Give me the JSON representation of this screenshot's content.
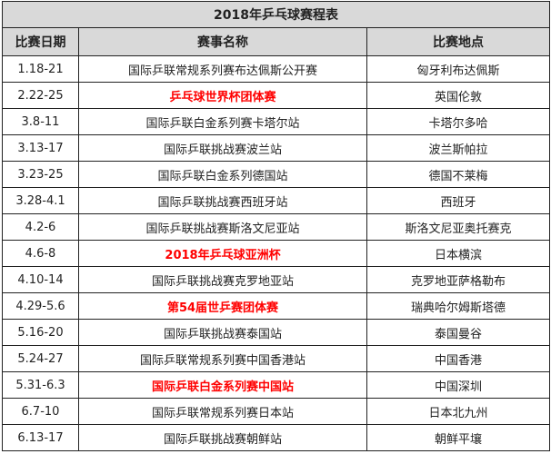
{
  "title": "2018年乒乓球赛程表",
  "headers": [
    "比赛日期",
    "赛事名称",
    "比赛地点"
  ],
  "highlight_color": "#ff0000",
  "rows": [
    {
      "date": "1.18-21",
      "event": "国际乒联常规系列赛布达佩斯公开赛",
      "location": "匈牙利布达佩斯",
      "highlight": false
    },
    {
      "date": "2.22-25",
      "event": "乒乓球世界杯团体赛",
      "location": "英国伦敦",
      "highlight": true
    },
    {
      "date": "3.8-11",
      "event": "国际乒联白金系列赛卡塔尔站",
      "location": "卡塔尔多哈",
      "highlight": false
    },
    {
      "date": "3.13-17",
      "event": "国际乒联挑战赛波兰站",
      "location": "波兰斯帕拉",
      "highlight": false
    },
    {
      "date": "3.23-25",
      "event": "国际乒联白金系列德国站",
      "location": "德国不莱梅",
      "highlight": false
    },
    {
      "date": "3.28-4.1",
      "event": "国际乒联挑战赛西班牙站",
      "location": "西班牙",
      "highlight": false
    },
    {
      "date": "4.2-6",
      "event": "国际乒联挑战赛斯洛文尼亚站",
      "location": "斯洛文尼亚奥托赛克",
      "highlight": false
    },
    {
      "date": "4.6-8",
      "event": "2018年乒乓球亚洲杯",
      "location": "日本横滨",
      "highlight": true
    },
    {
      "date": "4.10-14",
      "event": "国际乒联挑战赛克罗地亚站",
      "location": "克罗地亚萨格勒布",
      "highlight": false
    },
    {
      "date": "4.29-5.6",
      "event": "第54届世乒赛团体赛",
      "location": "瑞典哈尔姆斯塔德",
      "highlight": true
    },
    {
      "date": "5.16-20",
      "event": "国际乒联挑战赛泰国站",
      "location": "泰国曼谷",
      "highlight": false
    },
    {
      "date": "5.24-27",
      "event": "国际乒联常规系列赛中国香港站",
      "location": "中国香港",
      "highlight": false
    },
    {
      "date": "5.31-6.3",
      "event": "国际乒联白金系列赛中国站",
      "location": "中国深圳",
      "highlight": true
    },
    {
      "date": "6.7-10",
      "event": "国际乒联常规系列赛日本站",
      "location": "日本北九州",
      "highlight": false
    },
    {
      "date": "6.13-17",
      "event": "国际乒联挑战赛朝鲜站",
      "location": "朝鲜平壤",
      "highlight": false
    }
  ]
}
